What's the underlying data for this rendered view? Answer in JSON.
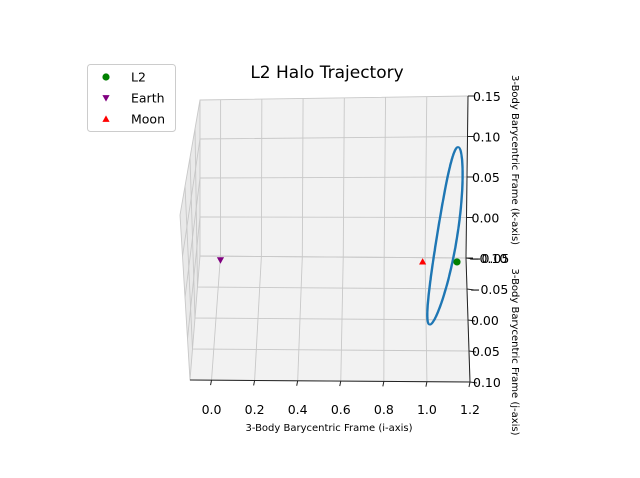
{
  "chart_data": {
    "type": "scatter",
    "projection": "3d",
    "title": "L2 Halo Trajectory",
    "xlabel": "3-Body Barycentric Frame (i-axis)",
    "ylabel": "3-Body Barycentric Frame (j-axis)",
    "zlabel": "3-Body Barycentric Frame (k-axis)",
    "x_ticks": [
      "0.0",
      "0.2",
      "0.4",
      "0.6",
      "0.8",
      "1.0",
      "1.2"
    ],
    "y_ticks": [
      "0.10",
      "0.05",
      "0.00",
      "−0.05",
      "−0.10"
    ],
    "z_ticks": [
      "0.15",
      "0.10",
      "0.05",
      "0.00",
      "−0.05"
    ],
    "xlim": [
      -0.1,
      1.2
    ],
    "ylim": [
      -0.1,
      0.1
    ],
    "zlim": [
      -0.05,
      0.15
    ],
    "grid": true,
    "legend_position": "top-left",
    "series": [
      {
        "name": "L2",
        "marker": "circle",
        "color": "#008000",
        "points": [
          [
            1.156,
            0.0,
            0.0
          ]
        ]
      },
      {
        "name": "Earth",
        "marker": "triangle-down",
        "color": "#800080",
        "points": [
          [
            0.0,
            0.0,
            0.0
          ]
        ]
      },
      {
        "name": "Moon",
        "marker": "triangle-up",
        "color": "#ff0000",
        "points": [
          [
            0.988,
            0.0,
            0.0
          ]
        ]
      }
    ],
    "trajectory": {
      "color": "#1f77b4",
      "x_range": [
        1.06,
        1.18
      ],
      "z_range": [
        -0.05,
        0.13
      ]
    }
  }
}
